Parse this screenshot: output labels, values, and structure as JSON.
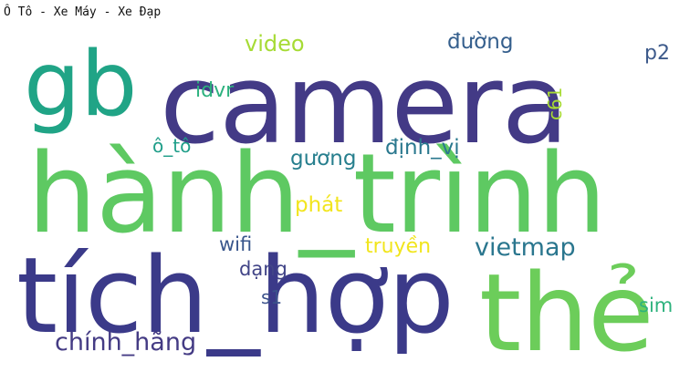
{
  "page": {
    "title": "Ô Tô - Xe Máy - Xe Đạp"
  },
  "wordcloud": {
    "words": {
      "camera": "camera",
      "gb": "gb",
      "hanh_trinh": "hành_trình",
      "tich_hop": "tích_hợp",
      "the": "thẻ",
      "video": "video",
      "duong": "đường",
      "p2": "p2",
      "idvr": "idvr",
      "c61": "c61",
      "o_to": "ô_tô",
      "dinh_vi": "định_vị",
      "guong": "gương",
      "phat": "phát",
      "wifi": "wifi",
      "truyen": "truyền",
      "vietmap": "vietmap",
      "dang": "dạng",
      "s1": "s1",
      "sim": "sim",
      "chinh_hang": "chính_hãng"
    },
    "colors": {
      "camera": "#433a86",
      "gb": "#20a486",
      "hanh_trinh": "#5ec962",
      "tich_hop": "#3b3a89",
      "the": "#6ccd5a",
      "video": "#a6db35",
      "duong": "#355f8d",
      "p2": "#3d5a8b",
      "idvr": "#2cb17e",
      "c61": "#a8db34",
      "o_to": "#1f9e89",
      "dinh_vi": "#2a788e",
      "guong": "#277f8e",
      "phat": "#f2e51d",
      "wifi": "#39568c",
      "truyen": "#f1e51d",
      "vietmap": "#2a768e",
      "dang": "#414487",
      "s1": "#3b518b",
      "sim": "#2db27d",
      "chinh_hang": "#443b84"
    }
  }
}
